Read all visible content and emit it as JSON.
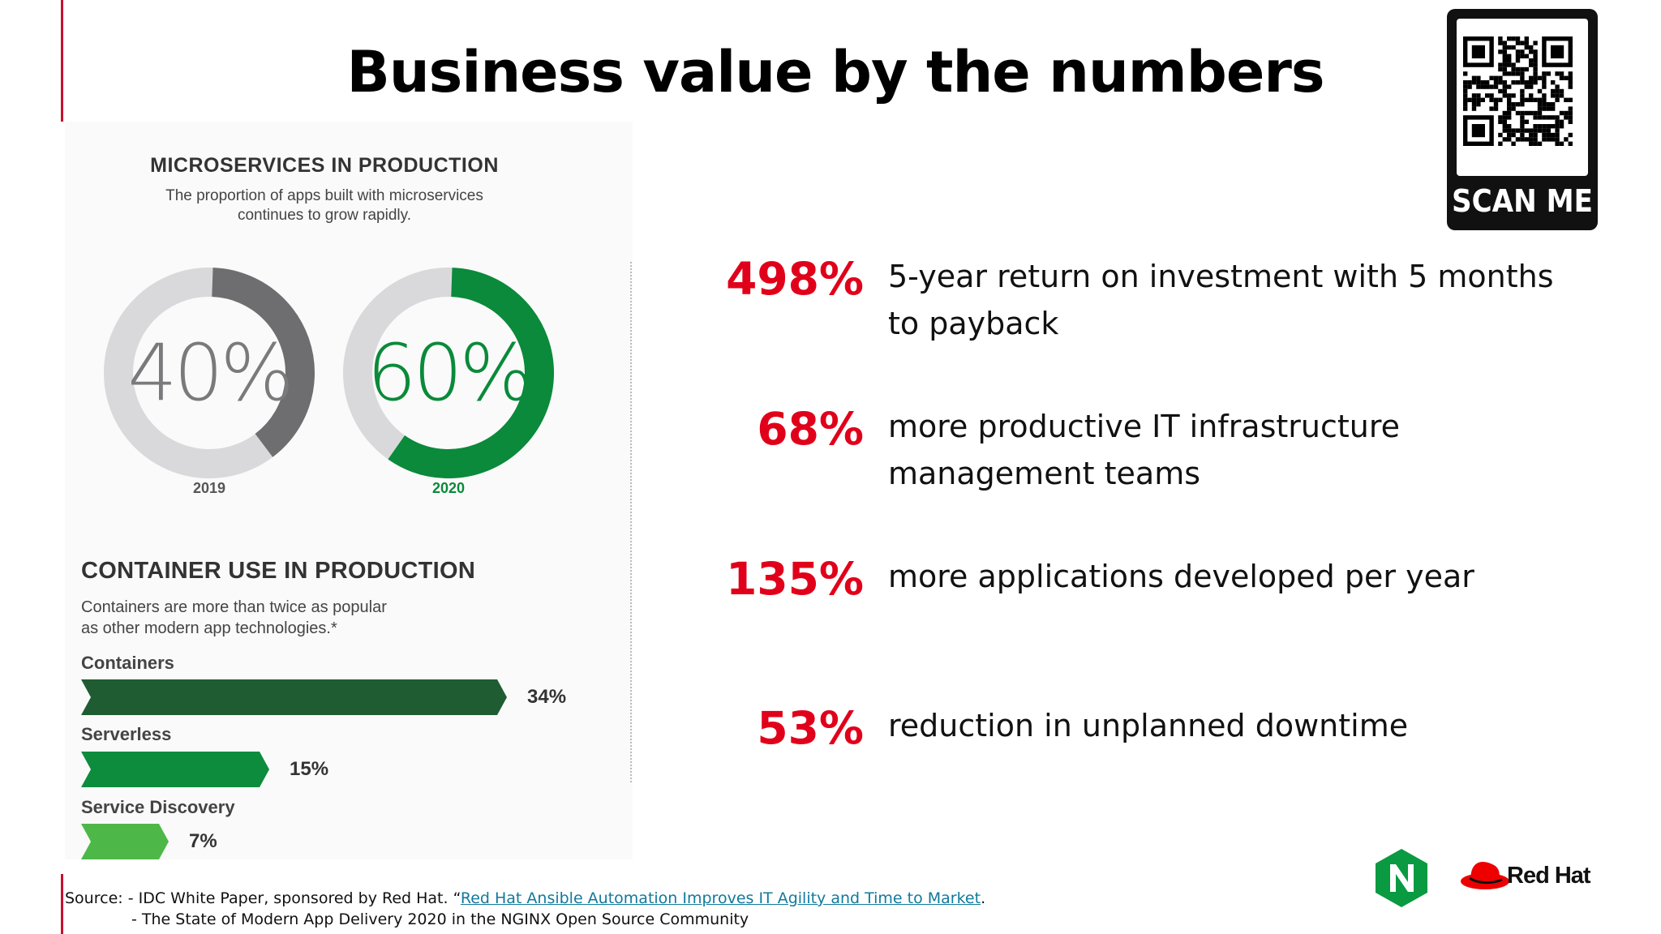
{
  "slide": {
    "title": "Business value by the numbers"
  },
  "qr": {
    "caption": "SCAN ME"
  },
  "microservices": {
    "title": "MICROSERVICES IN PRODUCTION",
    "subtitle_line1": "The proportion of apps built with microservices",
    "subtitle_line2": "continues to grow rapidly."
  },
  "containers": {
    "title": "CONTAINER USE IN PRODUCTION",
    "subtitle_line1": "Containers are more than twice as popular",
    "subtitle_line2": "as other modern app technologies.*"
  },
  "chart_data": [
    {
      "type": "pie",
      "title": "MICROSERVICES IN PRODUCTION",
      "categories": [
        "2019",
        "2020"
      ],
      "series": [
        {
          "values": [
            40,
            60
          ]
        }
      ],
      "labels": [
        "40%",
        "60%"
      ],
      "colors": [
        "#6e6e70",
        "#0a8a3a"
      ],
      "track_color": "#d9d9db",
      "label_colors": [
        "#7a7a7c",
        "#0a8a3a"
      ]
    },
    {
      "type": "bar",
      "title": "CONTAINER USE IN PRODUCTION",
      "categories": [
        "Containers",
        "Serverless",
        "Service Discovery"
      ],
      "values": [
        34,
        15,
        7
      ],
      "labels": [
        "34%",
        "15%",
        "7%"
      ],
      "colors": [
        "#1f5c32",
        "#0d8c3e",
        "#4db848"
      ],
      "orientation": "horizontal"
    }
  ],
  "stats": [
    {
      "value": "498%",
      "line1": "5-year return on investment  with 5 months",
      "line2": "to payback"
    },
    {
      "value": "68%",
      "line1": "more productive IT infrastructure",
      "line2": "management  teams"
    },
    {
      "value": "135%",
      "line1": "more applications  developed per year",
      "line2": ""
    },
    {
      "value": "53%",
      "line1": "reduction in unplanned downtime",
      "line2": ""
    }
  ],
  "logos": {
    "redhat_text": "Red Hat"
  },
  "source": {
    "prefix": "Source:   - IDC White Paper, sponsored  by Red Hat. “",
    "link_text": "Red Hat Ansible  Automation  Improves  IT Agility and Time to Market",
    "suffix": ".",
    "line2": "- The State of Modern App Delivery 2020 in the NGINX Open Source Community"
  },
  "colors": {
    "accent_red": "#e1001a",
    "brand_green": "#0a8a3a"
  }
}
